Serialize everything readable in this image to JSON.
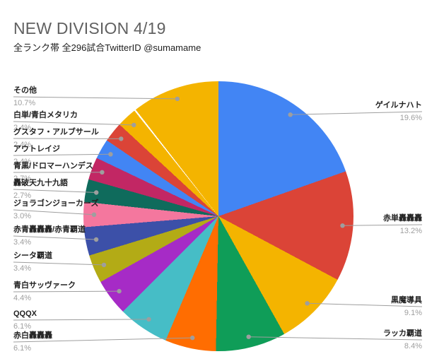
{
  "header": {
    "title": "NEW DIVISION 4/19",
    "subtitle": "全ランク帯 全296試合TwitterID @sumamame"
  },
  "chart_data": {
    "type": "pie",
    "title": "NEW DIVISION 4/19",
    "subtitle": "全ランク帯 全296試合TwitterID @sumamame",
    "unit": "percent",
    "total_matches": 296,
    "start_angle_deg": 0,
    "direction": "clockwise",
    "legend_position": "none",
    "label_style": "outside-callout-with-percent",
    "callout_color": "#9e9e9e",
    "slices": [
      {
        "label": "ゲイルナハト",
        "value": 19.6,
        "color": "#4285F4",
        "side": "right"
      },
      {
        "label": "赤単轟轟轟",
        "value": 13.2,
        "color": "#DB4437",
        "side": "right"
      },
      {
        "label": "黒魔導具",
        "value": 9.1,
        "color": "#F4B400",
        "side": "right"
      },
      {
        "label": "ラッカ覇道",
        "value": 8.4,
        "color": "#0F9D58",
        "side": "right"
      },
      {
        "label": "赤白轟轟轟",
        "value": 6.1,
        "color": "#FF6D01",
        "side": "left"
      },
      {
        "label": "QQQX",
        "value": 6.1,
        "color": "#46BDC6",
        "side": "left"
      },
      {
        "label": "青白サッヴァーク",
        "value": 4.4,
        "color": "#A62BC6",
        "side": "left"
      },
      {
        "label": "シータ覇道",
        "value": 3.4,
        "color": "#B3AB16",
        "side": "left"
      },
      {
        "label": "赤青轟轟轟/赤青覇道",
        "value": 3.4,
        "color": "#3C50A8",
        "side": "left"
      },
      {
        "label": "ジョラゴンジョーカーズ",
        "value": 3.0,
        "color": "#F4779E",
        "side": "left"
      },
      {
        "label": "轟破天九十九語",
        "value": 2.7,
        "color": "#0F6B5C",
        "side": "left"
      },
      {
        "label": "青黒/ドロマーハンデス",
        "value": 2.7,
        "color": "#C22764",
        "side": "left"
      },
      {
        "label": "アウトレイジ",
        "value": 2.4,
        "color": "#4285F4",
        "side": "left"
      },
      {
        "label": "グスタフ・アルブサール",
        "value": 2.4,
        "color": "#DB4437",
        "side": "left"
      },
      {
        "label": "白単/青白メタリカ",
        "value": 2.4,
        "color": "#F4B400",
        "side": "left"
      },
      {
        "label": "その他",
        "value": 10.7,
        "color": "#F4B400",
        "side": "left"
      }
    ]
  }
}
